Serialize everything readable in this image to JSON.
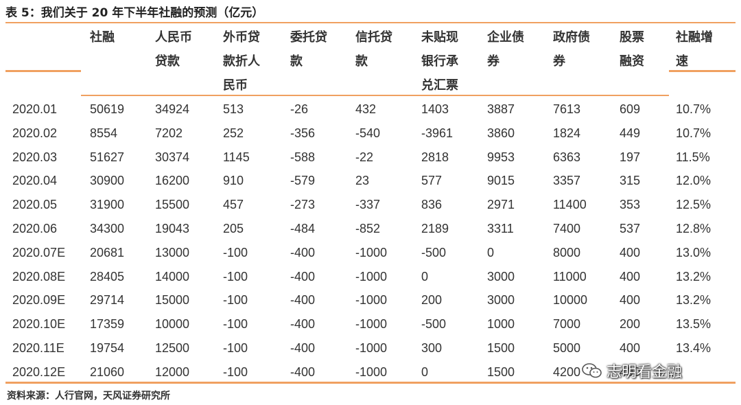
{
  "caption": "表 5：我们关于 20 年下半年社融的预测（亿元）",
  "headers": [
    {
      "lines": [
        "社融"
      ]
    },
    {
      "lines": [
        "人民币",
        "贷款"
      ]
    },
    {
      "lines": [
        "外币贷",
        "款折人",
        "民币"
      ]
    },
    {
      "lines": [
        "委托贷",
        "款"
      ]
    },
    {
      "lines": [
        "信托贷",
        "款"
      ]
    },
    {
      "lines": [
        "未贴现",
        "银行承",
        "兑汇票"
      ]
    },
    {
      "lines": [
        "企业债",
        "券"
      ]
    },
    {
      "lines": [
        "政府债",
        "券"
      ]
    },
    {
      "lines": [
        "股票",
        "融资"
      ]
    },
    {
      "lines": [
        "社融增",
        "速"
      ]
    }
  ],
  "rows": [
    [
      "2020.01",
      "50619",
      "34924",
      "513",
      "-26",
      "432",
      "1403",
      "3887",
      "7613",
      "609",
      "10.7%"
    ],
    [
      "2020.02",
      "8554",
      "7202",
      "252",
      "-356",
      "-540",
      "-3961",
      "3860",
      "1824",
      "449",
      "10.7%"
    ],
    [
      "2020.03",
      "51627",
      "30374",
      "1145",
      "-588",
      "-22",
      "2818",
      "9953",
      "6363",
      "197",
      "11.5%"
    ],
    [
      "2020.04",
      "30900",
      "16200",
      "910",
      "-579",
      "23",
      "577",
      "9015",
      "3357",
      "315",
      "12.0%"
    ],
    [
      "2020.05",
      "31900",
      "15500",
      "457",
      "-273",
      "-337",
      "836",
      "2971",
      "11400",
      "353",
      "12.5%"
    ],
    [
      "2020.06",
      "34300",
      "19043",
      "205",
      "-484",
      "-852",
      "2189",
      "3311",
      "7400",
      "537",
      "12.8%"
    ],
    [
      "2020.07E",
      "20681",
      "13000",
      "-100",
      "-400",
      "-1000",
      "-500",
      "0",
      "8000",
      "400",
      "13.0%"
    ],
    [
      "2020.08E",
      "28405",
      "14000",
      "-100",
      "-400",
      "-1000",
      "0",
      "3000",
      "11000",
      "400",
      "13.2%"
    ],
    [
      "2020.09E",
      "29714",
      "15000",
      "-100",
      "-400",
      "-1000",
      "200",
      "3000",
      "10000",
      "400",
      "13.2%"
    ],
    [
      "2020.10E",
      "17359",
      "10000",
      "-100",
      "-400",
      "-1000",
      "-500",
      "1000",
      "7000",
      "200",
      "13.5%"
    ],
    [
      "2020.11E",
      "19754",
      "12500",
      "-100",
      "-400",
      "-1000",
      "300",
      "1500",
      "5000",
      "400",
      "13.4%"
    ],
    [
      "2020.12E",
      "21060",
      "12000",
      "-100",
      "-400",
      "-1000",
      "0",
      "1500",
      "4200",
      "400",
      ""
    ]
  ],
  "source": "资料来源：人行官网，天风证券研究所",
  "watermark": {
    "icon": "wechat-icon",
    "text": "志明看金融"
  }
}
